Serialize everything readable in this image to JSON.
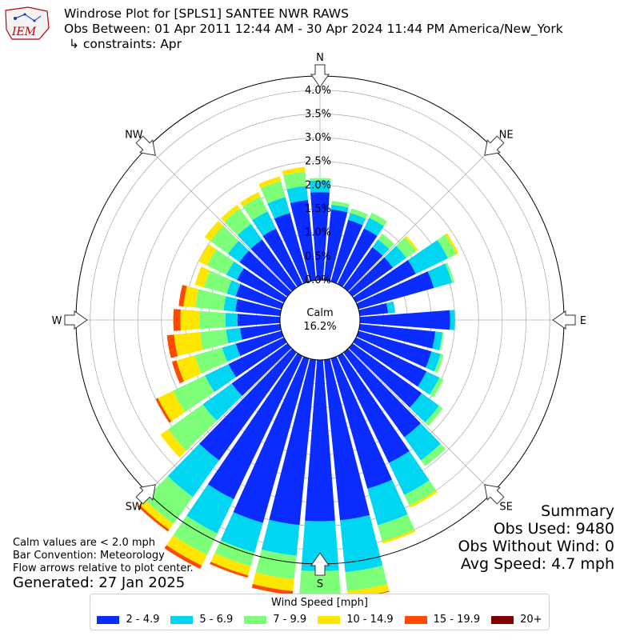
{
  "header": {
    "logo_text": "IEM",
    "title": "Windrose Plot for [SPLS1] SANTEE NWR RAWS",
    "subtitle": "Obs Between: 01 Apr 2011 12:44 AM - 30 Apr 2024 11:44 PM America/New_York",
    "constraints": "↳ constraints: Apr"
  },
  "notes": {
    "calm_note": "Calm values are < 2.0 mph",
    "bar_convention": "Bar Convention: Meteorology",
    "flow_arrows": "Flow arrows relative to plot center.",
    "generated": "Generated: 27 Jan 2025"
  },
  "summary": {
    "title": "Summary",
    "obs_used": "Obs Used: 9480",
    "obs_without_wind": "Obs Without Wind: 0",
    "avg_speed": "Avg Speed: 4.7 mph"
  },
  "legend": {
    "title": "Wind Speed [mph]",
    "items": [
      {
        "label": "2 - 4.9",
        "color": "#0b2cff"
      },
      {
        "label": "5 - 6.9",
        "color": "#00d5f2"
      },
      {
        "label": "7 - 9.9",
        "color": "#7dff7a"
      },
      {
        "label": "10 - 14.9",
        "color": "#ffe600"
      },
      {
        "label": "15 - 19.9",
        "color": "#ff4a00"
      },
      {
        "label": "20+",
        "color": "#800000"
      }
    ]
  },
  "chart_data": {
    "type": "windrose",
    "calm_label": "Calm",
    "calm_value": "16.2%",
    "radial_unit": "%",
    "rlim": [
      0,
      4.3
    ],
    "radial_ticks": [
      0,
      0.5,
      1.0,
      1.5,
      2.0,
      2.5,
      3.0,
      3.5,
      4.0
    ],
    "radial_tick_labels": [
      "0.0%",
      "0.5%",
      "1.0%",
      "1.5%",
      "2.0%",
      "2.5%",
      "3.0%",
      "3.5%",
      "4.0%"
    ],
    "direction_labels": [
      "N",
      "NE",
      "E",
      "SE",
      "S",
      "SW",
      "W",
      "NW"
    ],
    "directions_deg": [
      0,
      10,
      20,
      30,
      40,
      50,
      60,
      70,
      80,
      90,
      100,
      110,
      120,
      130,
      140,
      150,
      160,
      170,
      180,
      190,
      200,
      210,
      220,
      230,
      240,
      250,
      260,
      270,
      280,
      290,
      300,
      310,
      320,
      330,
      340,
      350
    ],
    "series": [
      {
        "name": "2 - 4.9",
        "color": "#0b2cff",
        "values": [
          1.85,
          1.5,
          1.35,
          1.3,
          1.05,
          1.05,
          1.4,
          1.65,
          0.6,
          1.9,
          1.6,
          1.6,
          1.65,
          1.8,
          2.2,
          2.5,
          2.85,
          3.4,
          3.4,
          3.5,
          3.6,
          3.35,
          2.8,
          1.45,
          1.3,
          1.0,
          0.85,
          0.9,
          0.95,
          1.0,
          1.1,
          1.25,
          1.25,
          1.3,
          1.5,
          1.7
        ]
      },
      {
        "name": "5 - 6.9",
        "color": "#00d5f2",
        "values": [
          0.25,
          0.1,
          0.15,
          0.25,
          0.2,
          0.35,
          0.75,
          0.4,
          0.15,
          0.1,
          0.15,
          0.2,
          0.3,
          0.45,
          0.6,
          0.75,
          0.8,
          1.1,
          1.05,
          0.65,
          0.65,
          0.8,
          0.95,
          0.75,
          0.55,
          0.3,
          0.3,
          0.25,
          0.25,
          0.2,
          0.25,
          0.3,
          0.4,
          0.4,
          0.35,
          0.3
        ]
      },
      {
        "name": "7 - 9.9",
        "color": "#7dff7a",
        "values": [
          0.05,
          0.08,
          0.1,
          0.12,
          0.15,
          0.25,
          0.2,
          0.05,
          0.0,
          0.0,
          0.03,
          0.07,
          0.1,
          0.1,
          0.15,
          0.25,
          0.35,
          0.4,
          0.55,
          0.5,
          0.3,
          0.5,
          0.7,
          0.9,
          0.75,
          0.6,
          0.55,
          0.55,
          0.6,
          0.5,
          0.45,
          0.45,
          0.4,
          0.35,
          0.35,
          0.3
        ]
      },
      {
        "name": "10 - 14.9",
        "color": "#ffe600",
        "values": [
          0.0,
          0.0,
          0.0,
          0.0,
          0.0,
          0.05,
          0.05,
          0.0,
          0.0,
          0.0,
          0.0,
          0.0,
          0.0,
          0.0,
          0.0,
          0.05,
          0.05,
          0.15,
          0.25,
          0.25,
          0.2,
          0.25,
          0.15,
          0.2,
          0.35,
          0.4,
          0.55,
          0.4,
          0.25,
          0.2,
          0.2,
          0.15,
          0.1,
          0.1,
          0.1,
          0.1
        ]
      },
      {
        "name": "15 - 19.9",
        "color": "#ff4a00",
        "values": [
          0.0,
          0.0,
          0.0,
          0.0,
          0.0,
          0.0,
          0.0,
          0.0,
          0.0,
          0.0,
          0.0,
          0.0,
          0.0,
          0.0,
          0.0,
          0.0,
          0.0,
          0.02,
          0.05,
          0.08,
          0.05,
          0.08,
          0.05,
          0.0,
          0.05,
          0.1,
          0.15,
          0.15,
          0.1,
          0.0,
          0.0,
          0.0,
          0.0,
          0.0,
          0.0,
          0.0
        ]
      },
      {
        "name": "20+",
        "color": "#800000",
        "values": [
          0,
          0,
          0,
          0,
          0,
          0,
          0,
          0,
          0,
          0,
          0,
          0,
          0,
          0,
          0,
          0,
          0,
          0,
          0,
          0,
          0,
          0,
          0,
          0,
          0,
          0,
          0,
          0,
          0,
          0,
          0,
          0,
          0,
          0,
          0,
          0
        ]
      }
    ],
    "grid": true
  }
}
